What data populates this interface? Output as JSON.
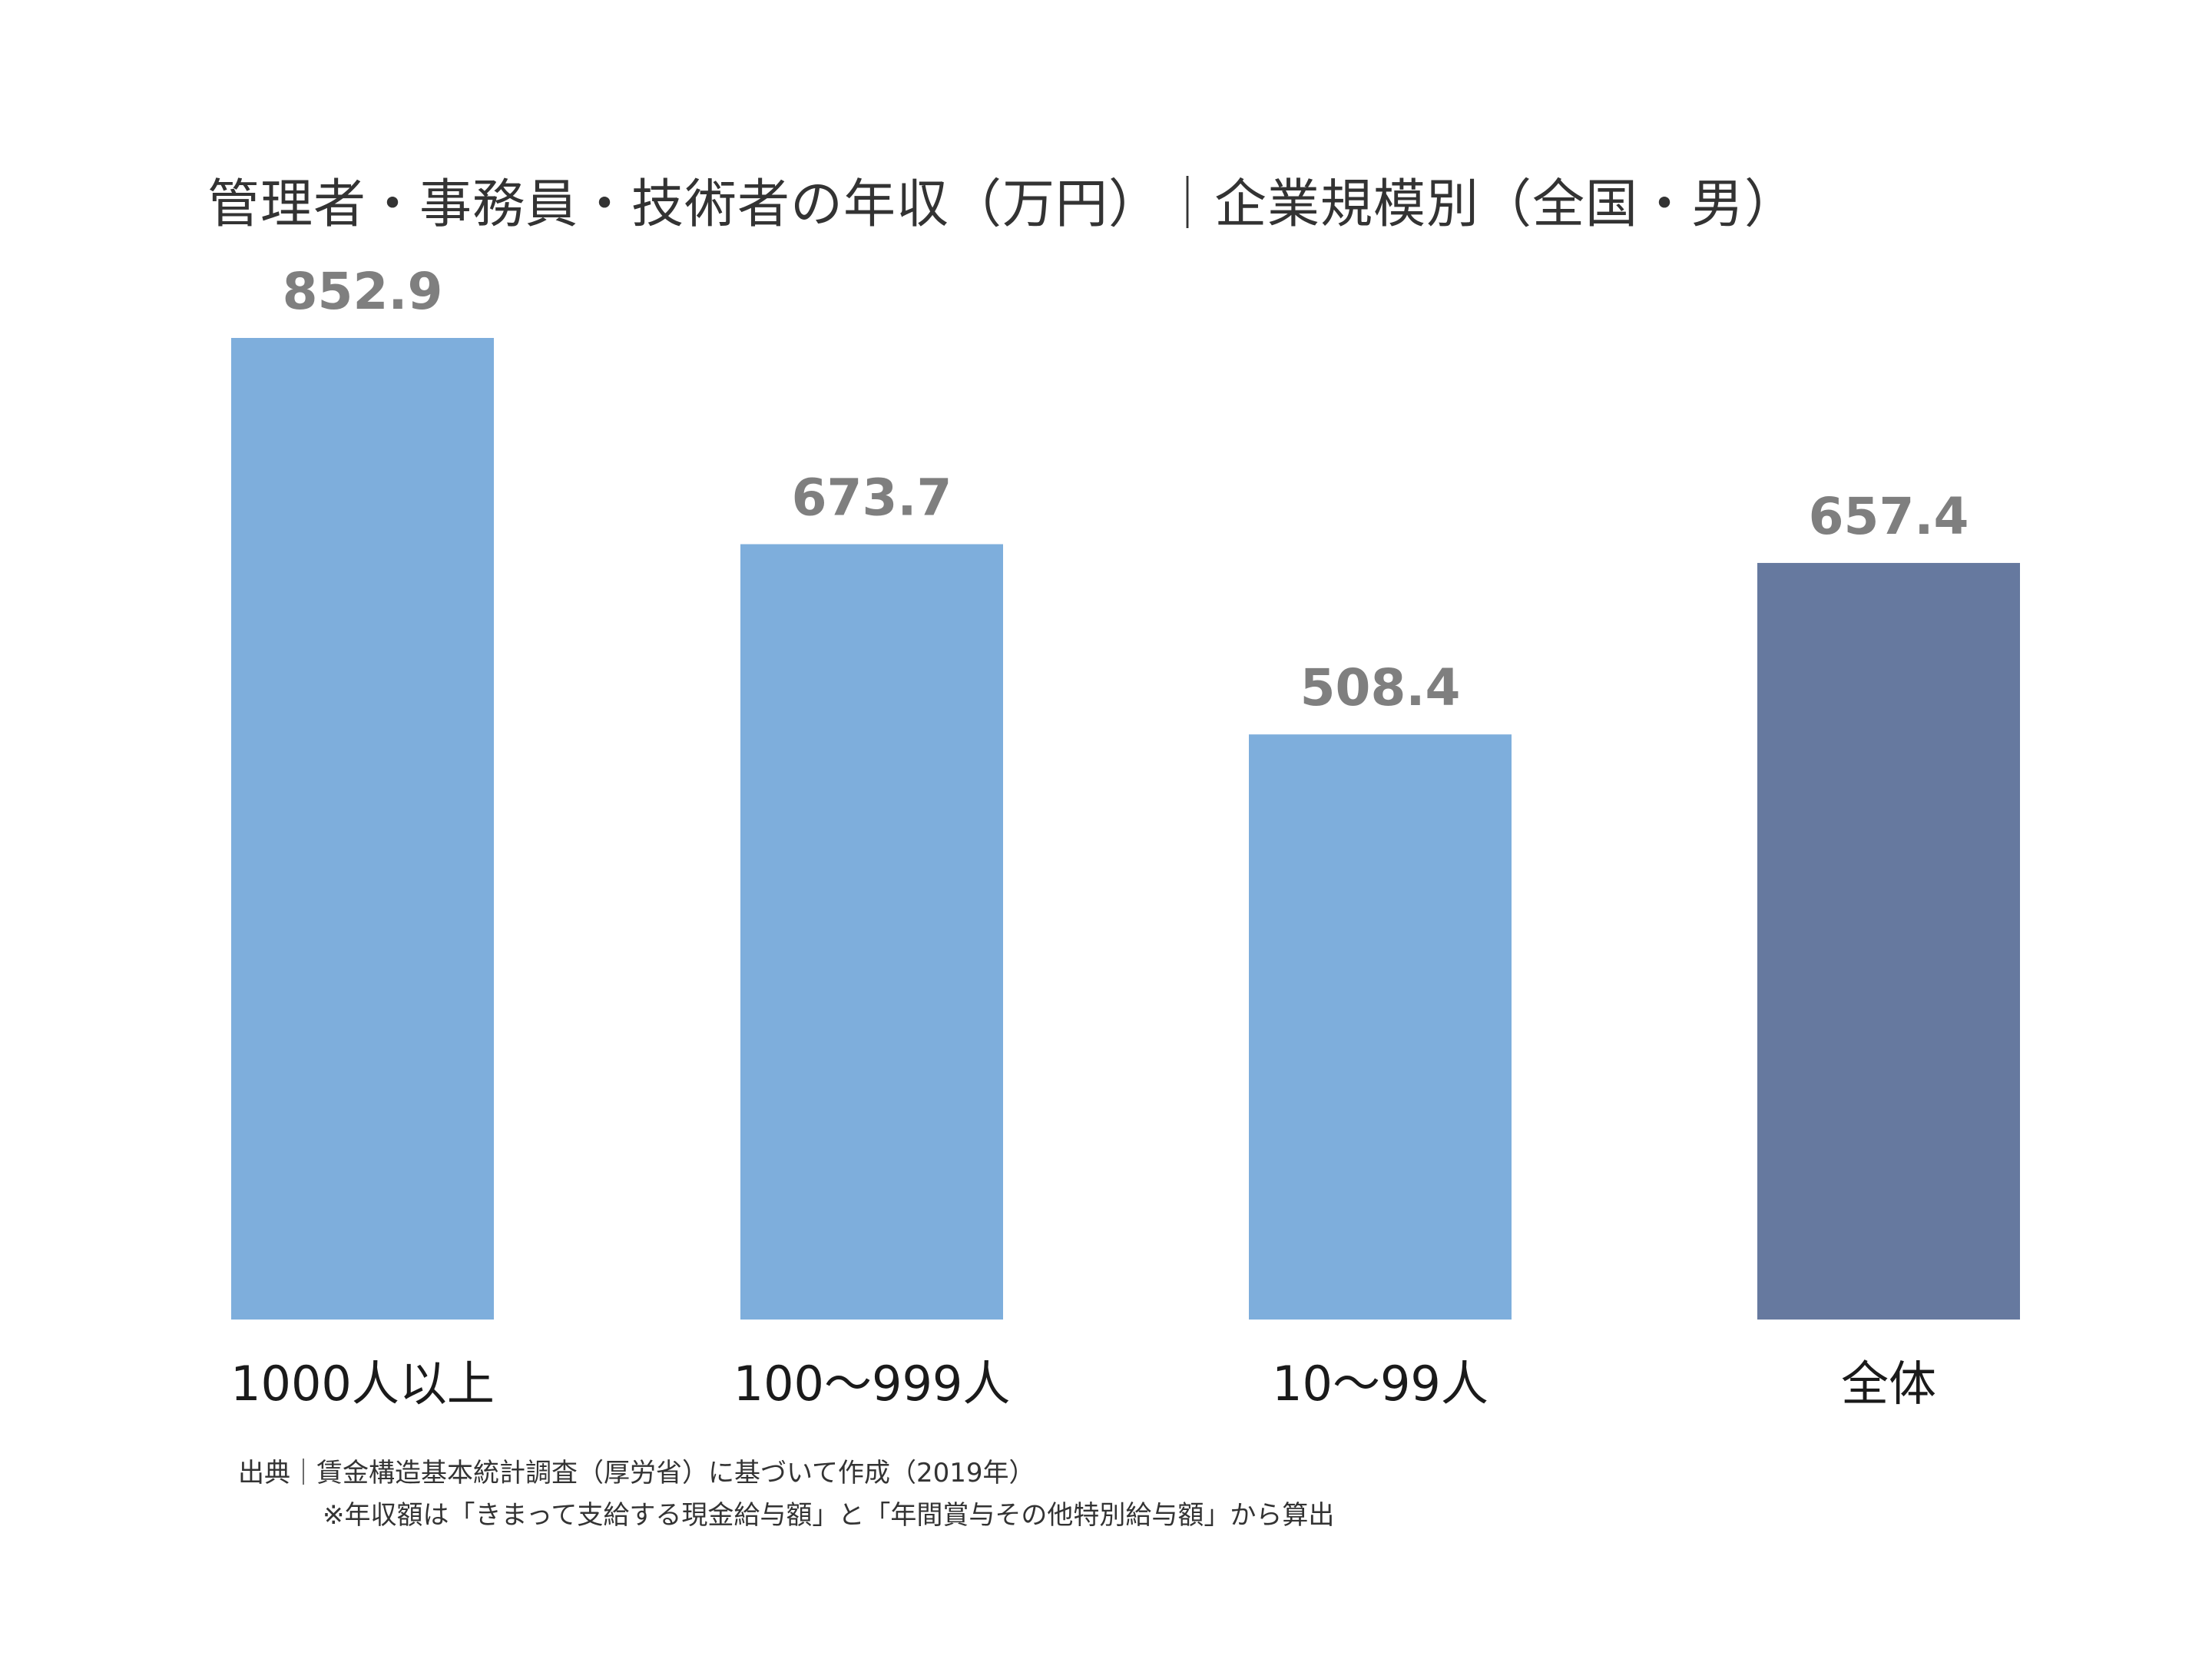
{
  "chart_data": {
    "type": "bar",
    "title": "管理者・事務員・技術者の年収（万円）｜企業規模別（全国・男）",
    "categories": [
      "1000人以上",
      "100〜999人",
      "10〜99人",
      "全体"
    ],
    "values": [
      852.9,
      673.7,
      508.4,
      657.4
    ],
    "value_labels": [
      "852.9",
      "673.7",
      "508.4",
      "657.4"
    ],
    "colors": [
      "#7eaedc",
      "#7eaedc",
      "#7eaedc",
      "#66799f"
    ],
    "xlabel": "",
    "ylabel": "",
    "ylim": [
      0,
      852.9
    ],
    "grid": false,
    "legend": "none"
  },
  "footer": {
    "source": "出典｜賃金構造基本統計調査（厚労省）に基づいて作成（2019年）",
    "note": "※年収額は「きまって支給する現金給与額」と「年間賞与その他特別給与額」から算出"
  }
}
